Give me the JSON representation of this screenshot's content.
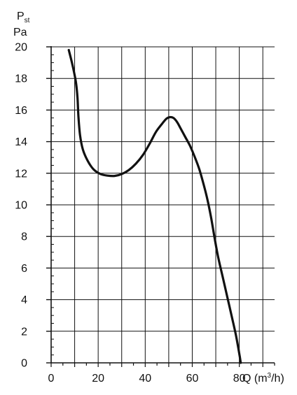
{
  "chart_data": {
    "type": "line",
    "title": "",
    "ylabel": "Pst",
    "ylabel_main": "P",
    "ylabel_sub": "st",
    "yunit": "Pa",
    "xlabel_prefix": "Q (m",
    "xlabel_sup": "3",
    "xlabel_suffix": "/h)",
    "xlim": [
      0,
      95
    ],
    "ylim": [
      0,
      20
    ],
    "xticks": [
      0,
      20,
      40,
      60,
      80
    ],
    "yticks": [
      0,
      2,
      4,
      6,
      8,
      10,
      12,
      14,
      16,
      18,
      20
    ],
    "grid": true,
    "legend": "none",
    "colors": {
      "line": "#111111",
      "grid": "#111111",
      "axis": "#111111"
    },
    "series": [
      {
        "x": [
          7.5,
          9,
          10.5,
          11.2,
          11.6,
          12.3,
          13.5,
          15.5,
          18,
          21,
          24,
          27,
          30,
          33,
          36,
          39,
          42,
          44.5,
          47,
          49,
          50.5,
          52,
          53.5,
          55,
          57,
          59,
          61,
          63,
          65,
          66.5,
          68,
          69.5,
          71,
          73,
          75,
          77,
          78.5,
          79.5,
          80.2,
          80.6
        ],
        "y": [
          19.8,
          18.9,
          17.8,
          16.8,
          15.6,
          14.4,
          13.5,
          12.8,
          12.25,
          11.95,
          11.85,
          11.83,
          11.95,
          12.2,
          12.6,
          13.15,
          13.9,
          14.6,
          15.1,
          15.45,
          15.55,
          15.5,
          15.25,
          14.85,
          14.3,
          13.75,
          13.05,
          12.25,
          11.2,
          10.3,
          9.2,
          7.9,
          6.7,
          5.4,
          4.1,
          2.8,
          1.8,
          1.0,
          0.4,
          0.0
        ]
      }
    ]
  }
}
